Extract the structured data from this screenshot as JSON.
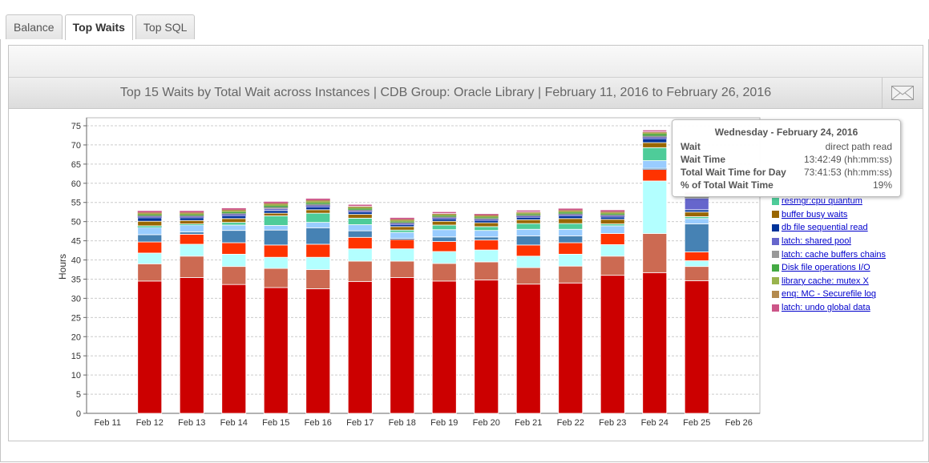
{
  "tabs": [
    {
      "label": "Balance"
    },
    {
      "label": "Top Waits"
    },
    {
      "label": "Top SQL"
    }
  ],
  "title": "Top 15 Waits by Total Wait across Instances | CDB Group: Oracle Library | February 11, 2016 to February 26, 2016",
  "legend": [
    "resmgr:cpu quantum",
    "buffer busy waits",
    "db file sequential read",
    "latch: shared pool",
    "latch: cache buffers chains",
    "Disk file operations I/O",
    "library cache: mutex X",
    "enq: MC - Securefile log",
    "latch: undo global data"
  ],
  "tooltip": {
    "heading": "Wednesday - February 24, 2016",
    "rows": [
      {
        "label": "Wait",
        "value": "direct path read"
      },
      {
        "label": "Wait Time",
        "value": "13:42:49 (hh:mm:ss)"
      },
      {
        "label": "Total Wait Time for Day",
        "value": "73:41:53 (hh:mm:ss)"
      },
      {
        "label": "% of Total Wait Time",
        "value": "19%"
      }
    ]
  },
  "chart_data": {
    "type": "bar",
    "stacked": true,
    "title": "Top 15 Waits by Total Wait across Instances",
    "xlabel": "",
    "ylabel": "Hours",
    "ylim": [
      0,
      77
    ],
    "yticks": [
      0,
      5,
      10,
      15,
      20,
      25,
      30,
      35,
      40,
      45,
      50,
      55,
      60,
      65,
      70,
      75
    ],
    "grid": true,
    "legend_position": "right",
    "categories": [
      "Feb 11",
      "Feb 12",
      "Feb 13",
      "Feb 14",
      "Feb 15",
      "Feb 16",
      "Feb 17",
      "Feb 18",
      "Feb 19",
      "Feb 20",
      "Feb 21",
      "Feb 22",
      "Feb 23",
      "Feb 24",
      "Feb 25",
      "Feb 26"
    ],
    "series": [
      {
        "name": "",
        "color": "#cc0000",
        "values": [
          0,
          34.5,
          35.4,
          33.6,
          32.8,
          32.5,
          34.4,
          35.4,
          34.5,
          34.8,
          33.7,
          34.0,
          36.0,
          36.7,
          34.6,
          0
        ]
      },
      {
        "name": "",
        "color": "#cc6a52",
        "values": [
          0,
          4.5,
          5.6,
          4.7,
          5.0,
          5.0,
          5.3,
          4.3,
          4.6,
          4.7,
          4.3,
          4.4,
          5.0,
          10.2,
          3.7,
          0
        ]
      },
      {
        "name": "direct path read",
        "color": "#b3ffff",
        "values": [
          0,
          2.8,
          3.1,
          3.2,
          2.9,
          3.2,
          3.2,
          3.2,
          3.1,
          3.1,
          3.0,
          3.1,
          3.0,
          13.7,
          1.5,
          0
        ]
      },
      {
        "name": "",
        "color": "#ff3300",
        "values": [
          0,
          2.9,
          2.6,
          3.0,
          3.2,
          3.4,
          3.0,
          2.4,
          2.6,
          2.6,
          2.9,
          3.0,
          2.9,
          3.0,
          2.3,
          0
        ]
      },
      {
        "name": "",
        "color": "#4682b4",
        "values": [
          0,
          1.9,
          0.6,
          3.2,
          3.9,
          4.3,
          1.7,
          0.3,
          1.2,
          0.8,
          2.4,
          1.8,
          0,
          0.3,
          7.3,
          0
        ]
      },
      {
        "name": "",
        "color": "#99ccff",
        "values": [
          0,
          1.9,
          1.8,
          1.4,
          1.2,
          1.4,
          1.6,
          1.6,
          1.9,
          1.7,
          1.7,
          1.7,
          2.0,
          2.0,
          1.4,
          0
        ]
      },
      {
        "name": "resmgr:cpu quantum",
        "color": "#4ecc99",
        "values": [
          0,
          0.4,
          0.3,
          0.7,
          2.5,
          2.4,
          1.7,
          0.6,
          1.2,
          1.0,
          1.5,
          1.5,
          0.5,
          3.4,
          0.5,
          0
        ]
      },
      {
        "name": "buffer busy waits",
        "color": "#996600",
        "values": [
          0,
          1.2,
          0.9,
          1.0,
          0.7,
          0.9,
          1.0,
          0.9,
          1.0,
          1.0,
          1.0,
          1.3,
          1.2,
          1.3,
          1.2,
          0
        ]
      },
      {
        "name": "db file sequential read",
        "color": "#003399",
        "values": [
          0,
          0.9,
          0.7,
          0.7,
          0.7,
          0.7,
          0.6,
          0.5,
          0.6,
          0.6,
          0.6,
          0.7,
          0.6,
          1.0,
          0.6,
          0
        ]
      },
      {
        "name": "latch: shared pool",
        "color": "#6666cc",
        "values": [
          0,
          0.3,
          0.3,
          0.4,
          0.5,
          0.4,
          0.3,
          0.3,
          0.3,
          0.3,
          0.3,
          0.3,
          0.3,
          0.4,
          3.0,
          0
        ]
      },
      {
        "name": "latch: cache buffers chains",
        "color": "#999999",
        "values": [
          0,
          0.3,
          0.3,
          0.3,
          0.4,
          0.4,
          0.3,
          0.3,
          0.3,
          0.3,
          0.3,
          0.3,
          0.3,
          0.4,
          0.3,
          0
        ]
      },
      {
        "name": "Disk file operations I/O",
        "color": "#44aa44",
        "values": [
          0,
          0.2,
          0.2,
          0.3,
          0.3,
          0.3,
          0.3,
          0.2,
          0.2,
          0.2,
          0.2,
          0.3,
          0.2,
          0.4,
          0.2,
          0
        ]
      },
      {
        "name": "library cache: mutex X",
        "color": "#99b34d",
        "values": [
          0,
          0.3,
          0.3,
          0.3,
          0.4,
          0.4,
          0.3,
          0.3,
          0.3,
          0.3,
          0.3,
          0.3,
          0.3,
          0.3,
          0.3,
          0
        ]
      },
      {
        "name": "enq: MC - Securefile log",
        "color": "#b38a4d",
        "values": [
          0,
          0.3,
          0.3,
          0.3,
          0.3,
          0.3,
          0.3,
          0.3,
          0.3,
          0.3,
          0.3,
          0.3,
          0.3,
          0.3,
          0.3,
          0
        ]
      },
      {
        "name": "latch: undo global data",
        "color": "#cc5588",
        "values": [
          0,
          0.4,
          0.4,
          0.4,
          0.4,
          0.4,
          0.5,
          0.4,
          0.5,
          0.3,
          0.5,
          0.4,
          0.4,
          0.5,
          0.4,
          0
        ]
      }
    ]
  }
}
